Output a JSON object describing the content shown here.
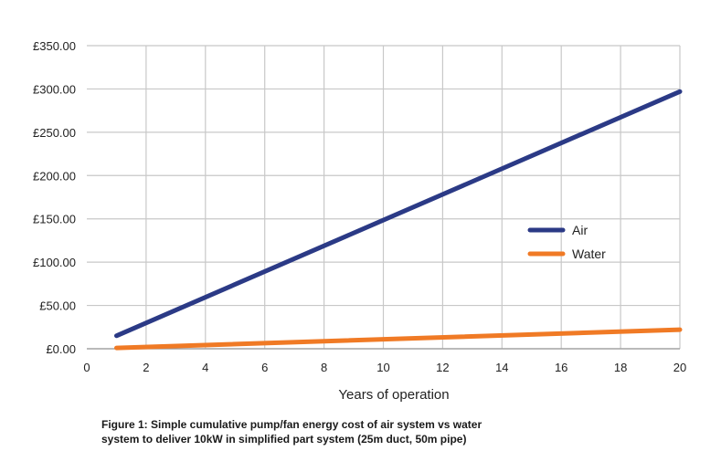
{
  "chart_data": {
    "type": "line",
    "xlabel": "Years of operation",
    "ylabel": "",
    "xlim": [
      0,
      20
    ],
    "ylim": [
      0,
      350
    ],
    "x_ticks": [
      "0",
      "2",
      "4",
      "6",
      "8",
      "10",
      "12",
      "14",
      "16",
      "18",
      "20"
    ],
    "y_ticks": [
      "£0.00",
      "£50.00",
      "£100.00",
      "£150.00",
      "£200.00",
      "£250.00",
      "£300.00",
      "£350.00"
    ],
    "grid": true,
    "legend_position": "center-right",
    "series": [
      {
        "name": "Air",
        "color": "#2b3a86",
        "x": [
          1,
          20
        ],
        "y": [
          15,
          297
        ]
      },
      {
        "name": "Water",
        "color": "#f07a25",
        "x": [
          1,
          20
        ],
        "y": [
          1,
          22
        ]
      }
    ]
  },
  "caption": {
    "line1": "Figure 1: Simple cumulative pump/fan energy cost of air system vs water",
    "line2": "system to deliver 10kW in simplified part system (25m duct, 50m pipe)"
  }
}
